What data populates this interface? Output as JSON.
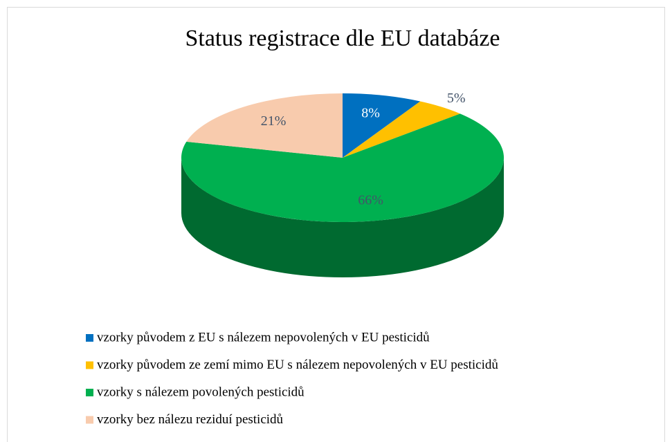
{
  "chart_data": {
    "type": "pie",
    "title": "Status registrace dle EU databáze",
    "categories": [
      "vzorky původem z EU s nálezem nepovolených v EU pesticidů",
      "vzorky původem ze zemí mimo EU s nálezem nepovolených v EU pesticidů",
      "vzorky s nálezem povolených pesticidů",
      "vzorky bez nálezu reziduí pesticidů"
    ],
    "values": [
      8,
      5,
      66,
      21
    ],
    "value_labels": [
      "8%",
      "5%",
      "66%",
      "21%"
    ],
    "colors": [
      "#0070c0",
      "#ffc000",
      "#00b050",
      "#f8cbad"
    ],
    "legend": "bottom"
  }
}
